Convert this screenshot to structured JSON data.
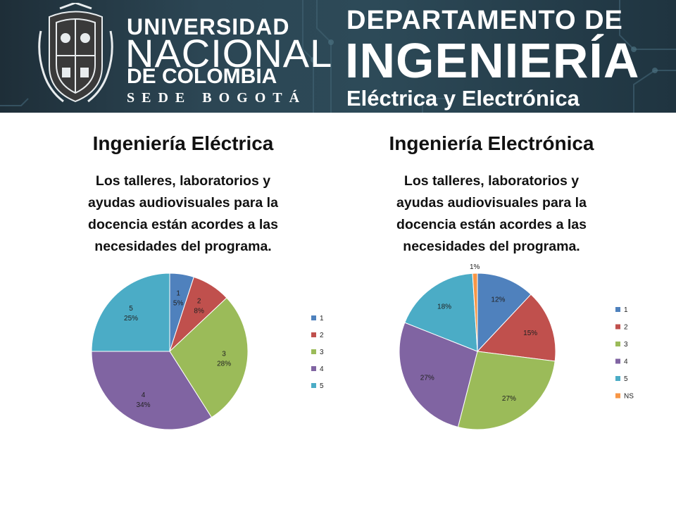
{
  "banner": {
    "university": {
      "line1": "UNIVERSIDAD",
      "line2": "NACIONAL",
      "line3": "DE COLOMBIA",
      "line4": "SEDE BOGOTÁ"
    },
    "department": {
      "line1": "DEPARTAMENTO DE",
      "line2": "INGENIERÍA",
      "line3": "Eléctrica y Electrónica"
    },
    "colors": {
      "background": "#2c4654",
      "text": "#ffffff"
    }
  },
  "left": {
    "title": "Ingeniería Eléctrica",
    "subtitle": "Los talleres, laboratorios y ayudas audiovisuales para la docencia están acordes a las necesidades del programa."
  },
  "right": {
    "title": "Ingeniería Electrónica",
    "subtitle": "Los talleres, laboratorios y ayudas audiovisuales para la docencia están acordes a las necesidades del programa."
  },
  "chart_data": [
    {
      "type": "pie",
      "title": "",
      "categories": [
        "1",
        "2",
        "3",
        "4",
        "5"
      ],
      "values": [
        5,
        8,
        28,
        34,
        25
      ],
      "labels": [
        "5%",
        "8%",
        "28%",
        "34%",
        "25%"
      ],
      "show_category_in_label": true,
      "colors": [
        "#4f81bd",
        "#c0504d",
        "#9bbb59",
        "#8064a2",
        "#4bacc6"
      ],
      "legend": "right"
    },
    {
      "type": "pie",
      "title": "",
      "categories": [
        "1",
        "2",
        "3",
        "4",
        "5",
        "NS"
      ],
      "values": [
        12,
        15,
        27,
        27,
        18,
        1
      ],
      "labels": [
        "12%",
        "15%",
        "27%",
        "27%",
        "18%",
        "1%"
      ],
      "show_category_in_label": false,
      "colors": [
        "#4f81bd",
        "#c0504d",
        "#9bbb59",
        "#8064a2",
        "#4bacc6",
        "#f79646"
      ],
      "legend": "right"
    }
  ]
}
